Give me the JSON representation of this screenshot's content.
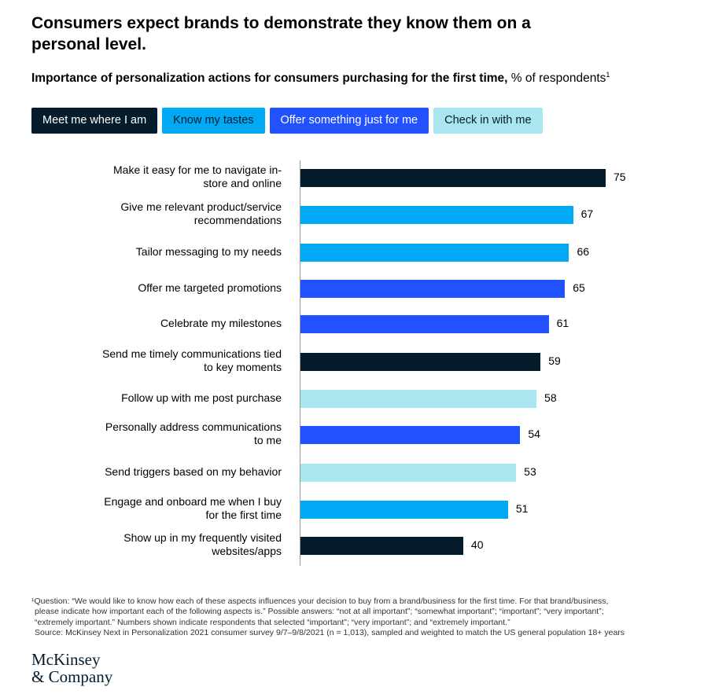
{
  "title": "Consumers expect brands to demonstrate they know them on a personal level.",
  "subtitle_bold": "Importance of personalization actions for consumers purchasing for the first time,",
  "subtitle_rest": " % of respondents",
  "subtitle_sup": "1",
  "chart_data": {
    "type": "bar",
    "orientation": "horizontal",
    "xlim": [
      0,
      100
    ],
    "grid": false,
    "legend_position": "top",
    "legend": [
      {
        "name": "Meet me where I am",
        "color": "#051c2c",
        "text": "#ffffff"
      },
      {
        "name": "Know my tastes",
        "color": "#00a9f4",
        "text": "#051c2c"
      },
      {
        "name": "Offer something just for me",
        "color": "#2251ff",
        "text": "#ffffff"
      },
      {
        "name": "Check in with me",
        "color": "#aae6f0",
        "text": "#051c2c"
      }
    ],
    "categories": [
      "Make it easy for me to navigate in-store and online",
      "Give me relevant product/service recommendations",
      "Tailor messaging to my needs",
      "Offer me targeted promotions",
      "Celebrate my milestones",
      "Send me timely communications tied to key moments",
      "Follow up with me post purchase",
      "Personally address communications to me",
      "Send triggers based on my behavior",
      "Engage and onboard me when I buy for the first time",
      "Show up in my frequently visited websites/apps"
    ],
    "values": [
      75,
      67,
      66,
      65,
      61,
      59,
      58,
      54,
      53,
      51,
      40
    ],
    "series_index": [
      0,
      1,
      1,
      2,
      2,
      0,
      3,
      2,
      3,
      1,
      0
    ]
  },
  "footnote": [
    "¹Question: “We would like to know how each of these aspects influences your decision to buy from a brand/business for the first time. For that brand/business,",
    "please indicate how important each of the following aspects is.” Possible answers: “not at all important”; “somewhat important”; “important”; “very important”;",
    "“extremely important.” Numbers shown indicate respondents that selected “important”; “very important”; and “extremely important.”",
    "Source: McKinsey Next in Personalization 2021 consumer survey 9/7–9/8/2021 (n = 1,013), sampled and weighted to match the US general population 18+ years"
  ],
  "logo": [
    "McKinsey",
    "& Company"
  ]
}
